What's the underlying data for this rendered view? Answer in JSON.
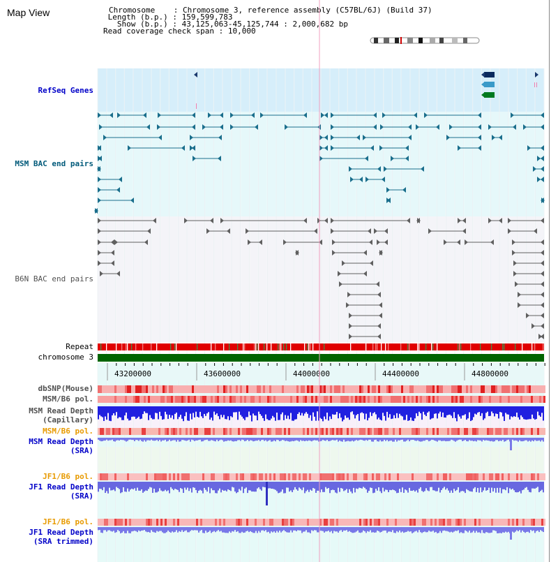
{
  "title": "Map View",
  "info": {
    "chromosome_label": "Chromosome",
    "chromosome_value": "Chromosome 3, reference assembly (C57BL/6J) (Build 37)",
    "length_label": "Length (b.p.)",
    "length_value": "159,599,783",
    "show_label": "Show (b.p.)",
    "show_value": "43,125,063-45,125,744 : 2,000,682 bp",
    "span_label": "Read coverage check span",
    "span_value": "10,000"
  },
  "tracks": {
    "refseq": "RefSeq Genes",
    "msm_bac": "MSM BAC end pairs",
    "b6n_bac": "B6N BAC end pairs",
    "repeat": "Repeat",
    "chromosome": "chromosome 3",
    "dbsnp": "dbSNP(Mouse)",
    "msm_b6_pol_1": "MSM/B6 pol.",
    "msm_read_depth_cap_1": "MSM Read Depth",
    "msm_read_depth_cap_2": "(Capillary)",
    "msm_b6_pol_2": "MSM/B6 pol.",
    "msm_read_depth_sra_1": "MSM Read Depth",
    "msm_read_depth_sra_2": "(SRA)",
    "jf1_b6_pol_1": "JF1/B6 pol.",
    "jf1_read_depth_sra_1": "JF1 Read Depth",
    "jf1_read_depth_sra_2": "(SRA)",
    "jf1_b6_pol_2": "JF1/B6 pol.",
    "jf1_read_depth_trim_1": "JF1 Read Depth",
    "jf1_read_depth_trim_2": "(SRA trimmed)"
  },
  "axis": {
    "ticks": [
      "43200000",
      "43600000",
      "44000000",
      "44400000",
      "44800000"
    ]
  },
  "colors": {
    "refseq_bg": "#d6eefa",
    "msm_bg": "#e6f8fa",
    "b6n_bg": "#f4f4f8",
    "track_label_blue": "#0000c8",
    "track_label_teal": "#005a7a",
    "track_label_orange": "#e89a00",
    "chromosome_green": "#006400",
    "msm_line": "#1a6e8c",
    "b6n_line": "#606060"
  }
}
